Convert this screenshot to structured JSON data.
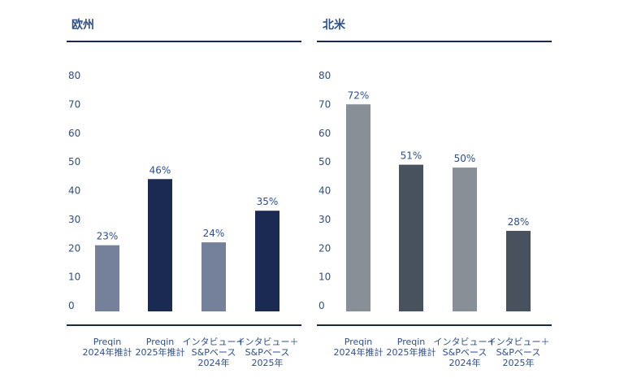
{
  "chart_data": [
    {
      "type": "bar",
      "title": "欧州",
      "categories": [
        [
          "Preqin",
          "2024年推計"
        ],
        [
          "Preqin",
          "2025年推計"
        ],
        [
          "インタビュー＋",
          "S&Pベース",
          "2024年"
        ],
        [
          "インタビュー＋",
          "S&Pベース",
          "2025年"
        ]
      ],
      "values": [
        23,
        46,
        24,
        35
      ],
      "data_labels": [
        "23%",
        "46%",
        "24%",
        "35%"
      ],
      "colors": [
        "#75819a",
        "#1b2a52",
        "#75819a",
        "#1b2a52"
      ],
      "yticks": [
        "0",
        "10",
        "20",
        "30",
        "40",
        "50",
        "60",
        "70",
        "80"
      ],
      "ylim": [
        0,
        80
      ],
      "xlabel": "",
      "ylabel": "",
      "grid": false
    },
    {
      "type": "bar",
      "title": "北米",
      "categories": [
        [
          "Preqin",
          "2024年推計"
        ],
        [
          "Preqin",
          "2025年推計"
        ],
        [
          "インタビュー＋",
          "S&Pベース",
          "2024年"
        ],
        [
          "インタビュー＋",
          "S&Pベース",
          "2025年"
        ]
      ],
      "values": [
        72,
        51,
        50,
        28
      ],
      "data_labels": [
        "72%",
        "51%",
        "50%",
        "28%"
      ],
      "colors": [
        "#888f97",
        "#48525e",
        "#888f97",
        "#48525e"
      ],
      "yticks": [
        "0",
        "10",
        "20",
        "30",
        "40",
        "50",
        "60",
        "70",
        "80"
      ],
      "ylim": [
        0,
        80
      ],
      "xlabel": "",
      "ylabel": "",
      "grid": false
    }
  ]
}
